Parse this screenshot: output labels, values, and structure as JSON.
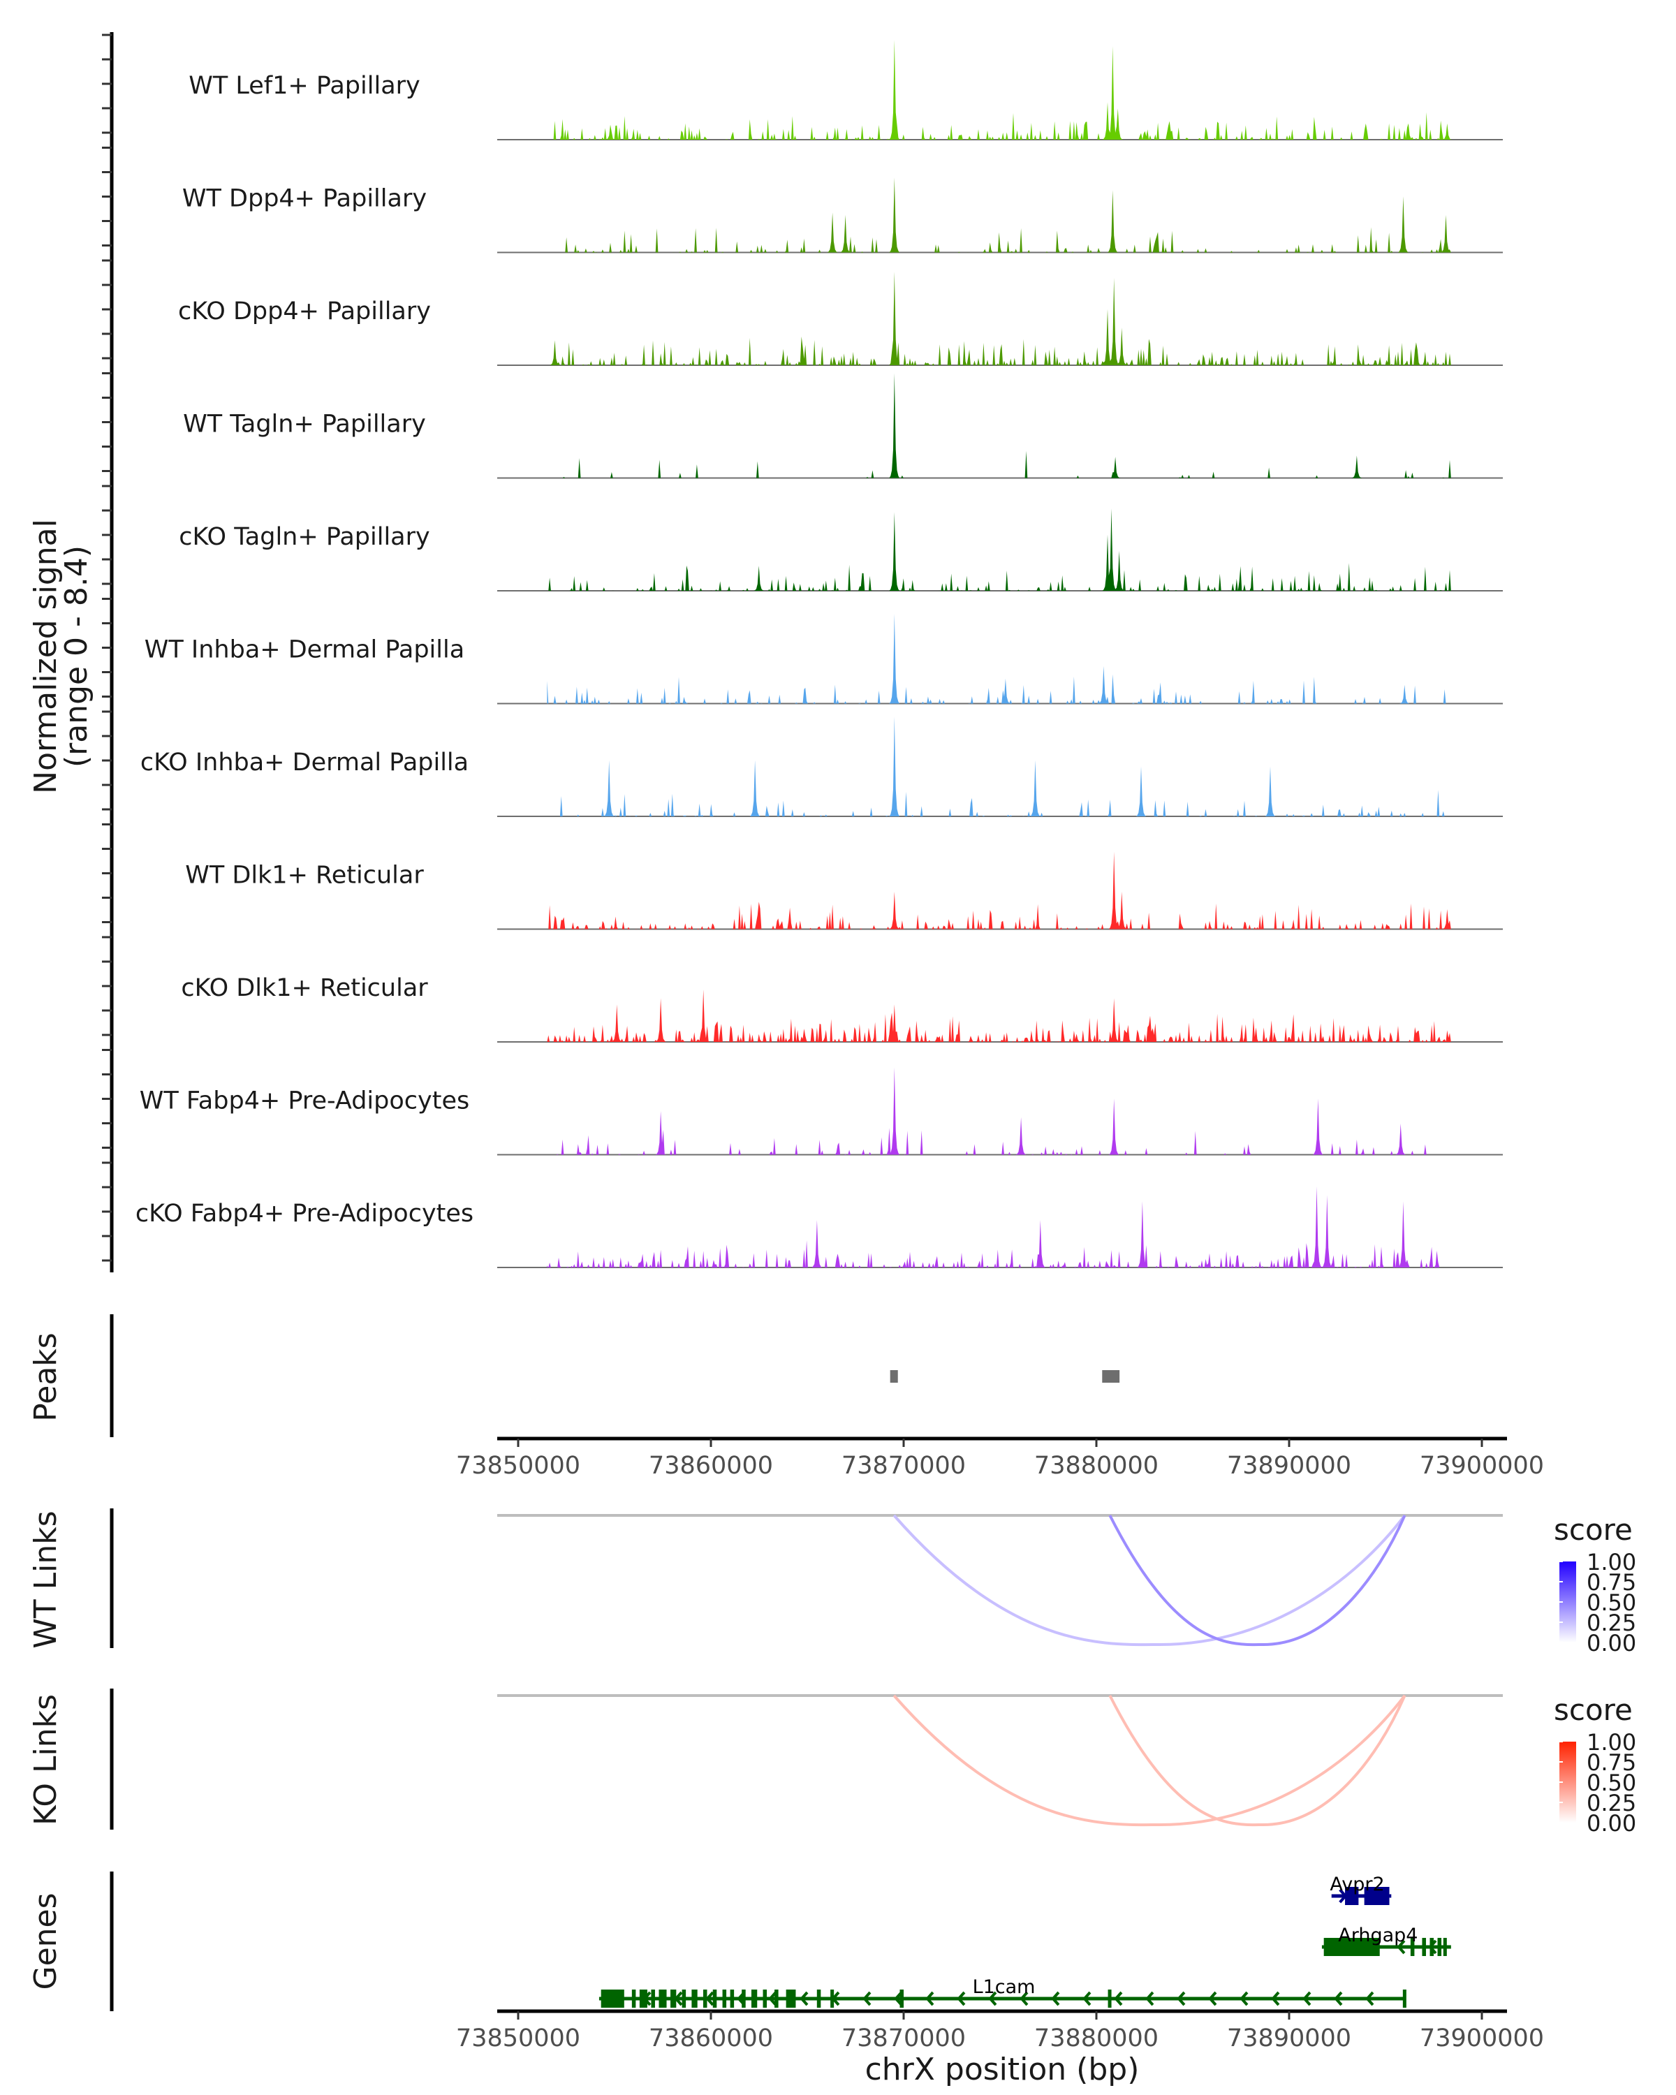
{
  "chart_data": {
    "type": "area",
    "title": "",
    "xlabel": "chrX position (bp)",
    "ylabel": "Normalized signal\n(range 0 - 8.4)",
    "ylabel_line1": "Normalized signal",
    "ylabel_line2": "(range 0 - 8.4)",
    "ylim": [
      0,
      8.4
    ],
    "xlim": [
      73848913,
      73901304
    ],
    "x_ticks": [
      73850000,
      73860000,
      73870000,
      73880000,
      73890000,
      73900000
    ],
    "x_tick_labels": [
      "73850000",
      "73860000",
      "73870000",
      "73880000",
      "73890000",
      "73900000"
    ],
    "tracks": [
      {
        "name": "WT Lef1+ Papillary",
        "color": "#66CC00",
        "density": 0.55,
        "peaks": [
          [
            73869500,
            8.0
          ],
          [
            73880850,
            7.5
          ],
          [
            73880600,
            3.0
          ],
          [
            73881100,
            2.5
          ],
          [
            73854800,
            1.2
          ],
          [
            73896200,
            1.3
          ],
          [
            73898200,
            1.3
          ]
        ]
      },
      {
        "name": "WT Dpp4+ Papillary",
        "color": "#4C9900",
        "density": 0.25,
        "peaks": [
          [
            73869500,
            6.0
          ],
          [
            73880850,
            5.0
          ],
          [
            73895900,
            4.5
          ],
          [
            73898100,
            3.0
          ],
          [
            73866300,
            3.2
          ],
          [
            73867000,
            3.0
          ]
        ]
      },
      {
        "name": "cKO Dpp4+ Papillary",
        "color": "#4C9900",
        "density": 0.6,
        "peaks": [
          [
            73869500,
            7.5
          ],
          [
            73880900,
            7.0
          ],
          [
            73880600,
            4.5
          ],
          [
            73881300,
            3.0
          ],
          [
            73851900,
            2.0
          ]
        ]
      },
      {
        "name": "WT Tagln+ Papillary",
        "color": "#006600",
        "density": 0.08,
        "peaks": [
          [
            73869500,
            8.4
          ],
          [
            73893500,
            1.8
          ],
          [
            73881000,
            1.7
          ]
        ]
      },
      {
        "name": "cKO Tagln+ Papillary",
        "color": "#006600",
        "density": 0.35,
        "peaks": [
          [
            73869500,
            6.3
          ],
          [
            73880800,
            6.6
          ],
          [
            73880600,
            4.5
          ],
          [
            73881200,
            3.2
          ],
          [
            73862500,
            2.0
          ]
        ]
      },
      {
        "name": "WT Inhba+ Dermal Papilla",
        "color": "#56A5EC",
        "density": 0.3,
        "peaks": [
          [
            73869500,
            7.2
          ],
          [
            73880400,
            3.0
          ],
          [
            73875300,
            2.0
          ],
          [
            73896000,
            1.5
          ]
        ]
      },
      {
        "name": "cKO Inhba+ Dermal Papilla",
        "color": "#56A5EC",
        "density": 0.2,
        "peaks": [
          [
            73869500,
            8.0
          ],
          [
            73854700,
            4.5
          ],
          [
            73862300,
            4.5
          ],
          [
            73876800,
            4.5
          ],
          [
            73882300,
            4.0
          ],
          [
            73889000,
            4.0
          ]
        ]
      },
      {
        "name": "WT Dlk1+ Reticular",
        "color": "#FF2A2A",
        "density": 0.45,
        "peaks": [
          [
            73880900,
            6.2
          ],
          [
            73869500,
            3.0
          ],
          [
            73881300,
            3.0
          ],
          [
            73898200,
            1.6
          ]
        ]
      },
      {
        "name": "cKO Dlk1+ Reticular",
        "color": "#FF2A2A",
        "density": 0.85,
        "peaks": [
          [
            73859600,
            4.2
          ],
          [
            73857400,
            3.5
          ],
          [
            73880900,
            3.5
          ],
          [
            73869500,
            3.0
          ],
          [
            73855100,
            3.0
          ]
        ]
      },
      {
        "name": "WT Fabp4+ Pre-Adipocytes",
        "color": "#B03AEF",
        "density": 0.2,
        "peaks": [
          [
            73869500,
            7.0
          ],
          [
            73880900,
            4.5
          ],
          [
            73891500,
            4.5
          ],
          [
            73857400,
            3.5
          ],
          [
            73876100,
            3.0
          ],
          [
            73895800,
            2.5
          ]
        ]
      },
      {
        "name": "cKO Fabp4+ Pre-Adipocytes",
        "color": "#B03AEF",
        "density": 0.55,
        "peaks": [
          [
            73891400,
            6.5
          ],
          [
            73892000,
            5.8
          ],
          [
            73895900,
            5.3
          ],
          [
            73882400,
            5.3
          ],
          [
            73865500,
            3.8
          ],
          [
            73877100,
            3.8
          ]
        ]
      }
    ],
    "peaks_track": {
      "label": "Peaks",
      "color": "#6E6E6E",
      "regions": [
        [
          73869300,
          73869700
        ],
        [
          73880300,
          73881200
        ]
      ]
    },
    "links": [
      {
        "panel": "WT Links",
        "legend_title": "score",
        "low_color": "#FFFFFF",
        "high_color": "#2200FF",
        "arcs": [
          {
            "start": 73869500,
            "end": 73896000,
            "score": 0.25
          },
          {
            "start": 73880700,
            "end": 73896000,
            "score": 0.45
          }
        ]
      },
      {
        "panel": "KO Links",
        "legend_title": "score",
        "low_color": "#FFFFFF",
        "high_color": "#FF2200",
        "arcs": [
          {
            "start": 73869500,
            "end": 73896000,
            "score": 0.3
          },
          {
            "start": 73880700,
            "end": 73896000,
            "score": 0.3
          }
        ]
      }
    ],
    "legend_ticks": [
      "1.00",
      "0.75",
      "0.50",
      "0.25",
      "0.00"
    ],
    "legend_values": [
      1.0,
      0.75,
      0.5,
      0.25,
      0.0
    ],
    "legend_placement": "right",
    "genes": [
      {
        "name": "Avpr2",
        "start": 73892200,
        "end": 73895300,
        "strand": "+",
        "color": "#00008B",
        "row": 0,
        "exons": [
          [
            73892900,
            73893600
          ],
          [
            73893900,
            73895200
          ]
        ]
      },
      {
        "name": "Arhgap4",
        "start": 73891700,
        "end": 73898400,
        "strand": "-",
        "color": "#006400",
        "row": 1,
        "exons": [
          [
            73891800,
            73894700
          ],
          [
            73896300,
            73896500
          ],
          [
            73896900,
            73897100
          ],
          [
            73897300,
            73897500
          ],
          [
            73897700,
            73897900
          ],
          [
            73898000,
            73898150
          ]
        ]
      },
      {
        "name": "L1cam",
        "start": 73854200,
        "end": 73896000,
        "strand": "-",
        "color": "#006400",
        "row": 2,
        "exons": [
          [
            73854300,
            73855500
          ],
          [
            73855900,
            73856100
          ],
          [
            73856300,
            73856700
          ],
          [
            73856900,
            73857100
          ],
          [
            73857300,
            73857700
          ],
          [
            73857900,
            73858200
          ],
          [
            73858500,
            73858700
          ],
          [
            73859000,
            73859300
          ],
          [
            73859600,
            73859800
          ],
          [
            73860100,
            73860300
          ],
          [
            73860600,
            73860800
          ],
          [
            73861000,
            73861200
          ],
          [
            73861600,
            73861800
          ],
          [
            73862100,
            73862400
          ],
          [
            73862700,
            73862900
          ],
          [
            73863300,
            73863500
          ],
          [
            73863900,
            73864400
          ],
          [
            73865500,
            73865700
          ],
          [
            73866200,
            73866300
          ],
          [
            73869800,
            73870000
          ],
          [
            73880600,
            73880700
          ],
          [
            73895900,
            73896000
          ]
        ]
      }
    ],
    "panel_labels": {
      "peaks": "Peaks",
      "wt_links": "WT Links",
      "ko_links": "KO Links",
      "genes": "Genes"
    }
  }
}
